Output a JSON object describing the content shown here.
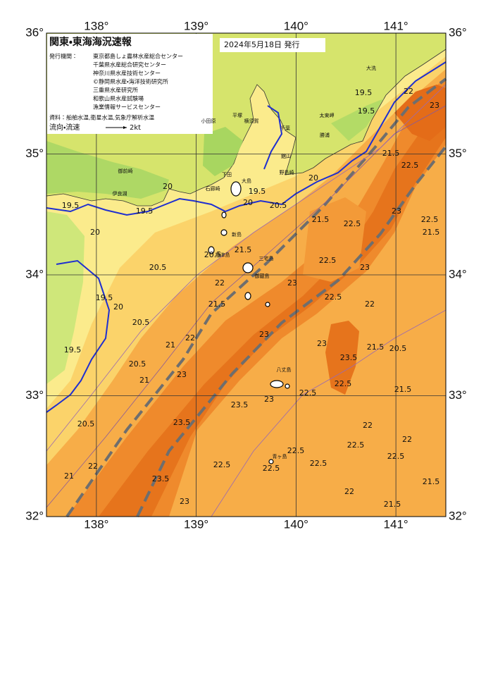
{
  "header": {
    "title": "関東・東海海況速報",
    "date": "2024年5月18日 発行",
    "issuer_label": "発行機関：",
    "issuers": [
      "東京都島しょ農林水産総合センター",
      "千葉県水産総合研究センター",
      "神奈川県水産技術センター",
      "©静岡県水産・海洋技術研究所",
      "三重県水産研究所",
      "和歌山県水産試験場",
      "漁業情報サービスセンター"
    ],
    "source": "資料：船舶水温,衛星水温,気象庁解析水温",
    "current_legend": "流向・流速",
    "current_scale": "2kt"
  },
  "map": {
    "lon_range": [
      137.5,
      141.5
    ],
    "lat_range": [
      32,
      36
    ],
    "lon_ticks": [
      {
        "value": 138,
        "label": "138°"
      },
      {
        "value": 139,
        "label": "139°"
      },
      {
        "value": 140,
        "label": "140°"
      },
      {
        "value": 141,
        "label": "141°"
      }
    ],
    "lat_ticks": [
      {
        "value": 36,
        "label": "36°"
      },
      {
        "value": 35,
        "label": "35°"
      },
      {
        "value": 34,
        "label": "34°"
      },
      {
        "value": 33,
        "label": "33°"
      },
      {
        "value": 32,
        "label": "32°"
      }
    ],
    "place_names": [
      "大洗",
      "太東岬",
      "勝浦",
      "平塚",
      "横須賀",
      "千葉",
      "小田原",
      "館山",
      "野島崎",
      "大島",
      "新島",
      "神津島",
      "三宅島",
      "御蔵島",
      "八丈島",
      "青ヶ島",
      "伊良湖",
      "御前崎",
      "下田",
      "石廊崎"
    ],
    "contour_labels": [
      19.5,
      19.5,
      20,
      20,
      19.5,
      20.5,
      20,
      21.5,
      20.5,
      20.5,
      22,
      21.5,
      23,
      19.5,
      20,
      20.5,
      21,
      22,
      19.5,
      20.5,
      21,
      23,
      23,
      22.5,
      21.5,
      22.5,
      23,
      22.5,
      21.5,
      22,
      23,
      21.5,
      22.5,
      23,
      22.5,
      22,
      23,
      23.5,
      22.5,
      21.5,
      20.5,
      21.5,
      22.5,
      23.5,
      23,
      22,
      22,
      22.5,
      22.5,
      22.5,
      22.5,
      22.5,
      22.5,
      23.5,
      23.5,
      22,
      23,
      21.5,
      21.5,
      20.5,
      21,
      22,
      19.5,
      19.5,
      20
    ]
  }
}
